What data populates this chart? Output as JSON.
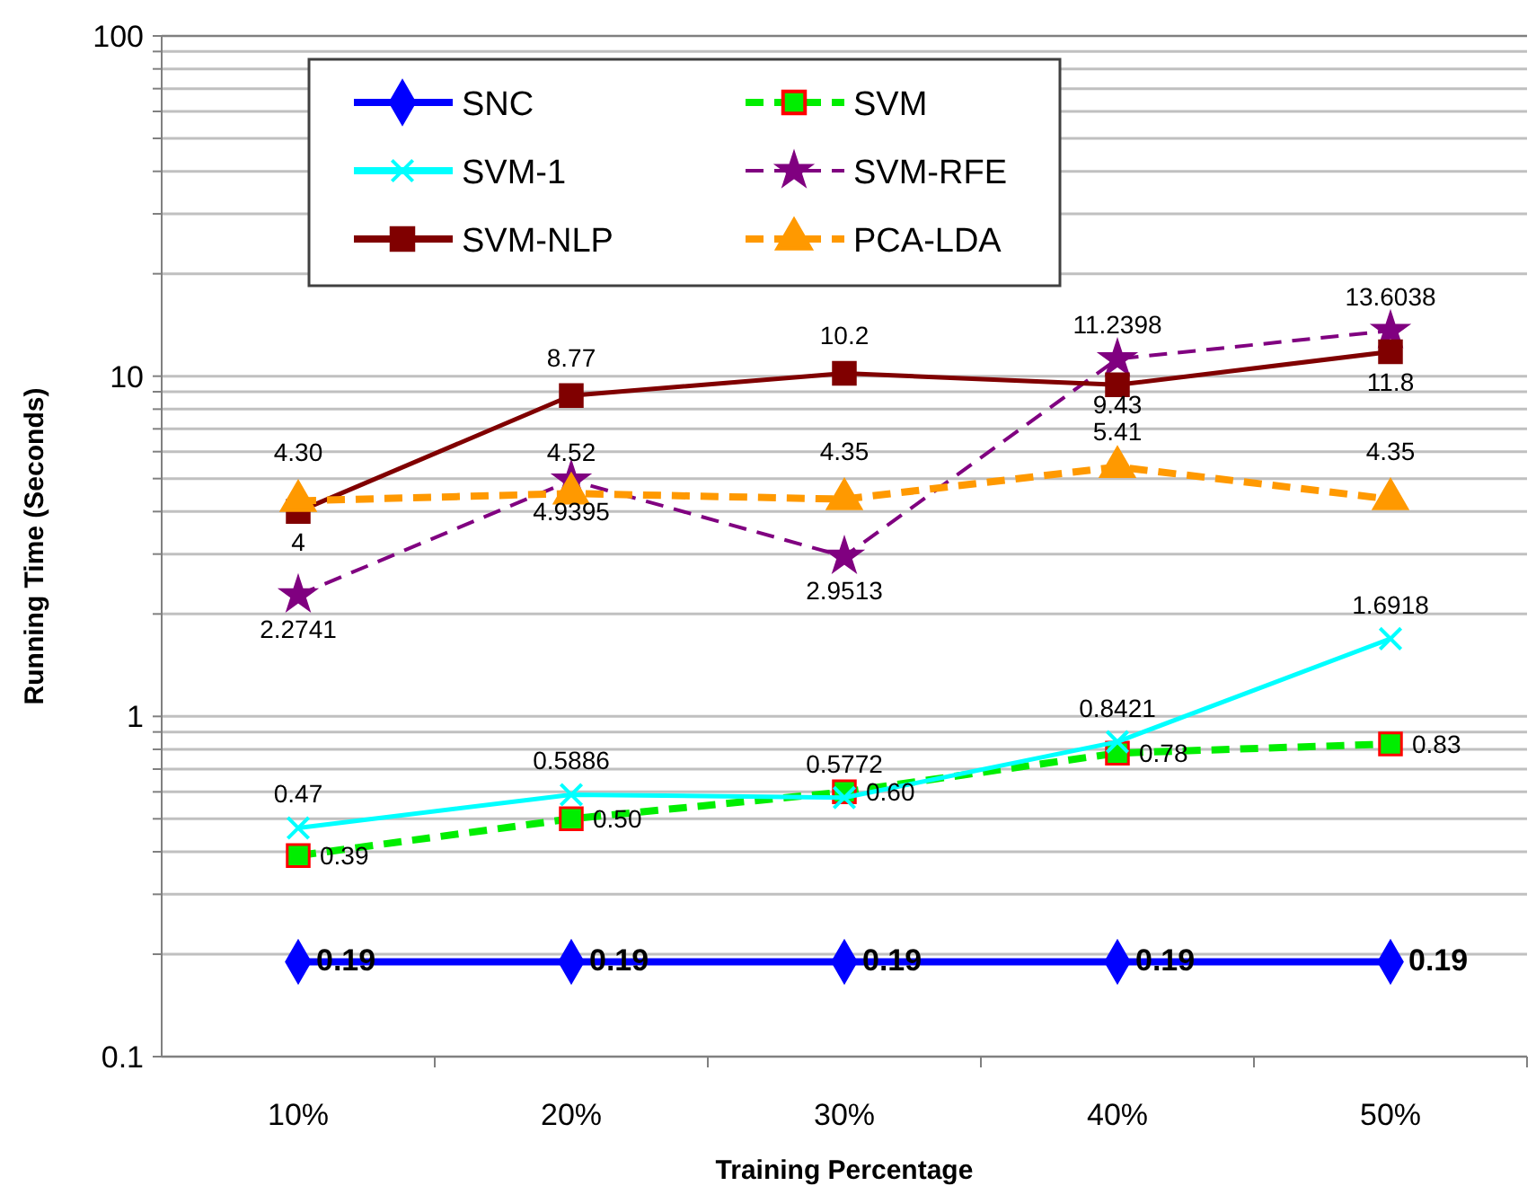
{
  "chart_data": {
    "type": "line",
    "xlabel": "Training Percentage",
    "ylabel": "Running Time (Seconds)",
    "categories": [
      "10%",
      "20%",
      "30%",
      "40%",
      "50%"
    ],
    "log": "y",
    "ylim": [
      0.1,
      100
    ],
    "yticks": [
      0.1,
      {
        "value": 0.2,
        "label": null
      },
      {
        "value": 0.3,
        "label": null
      },
      {
        "value": 0.4,
        "label": null
      },
      {
        "value": 0.5,
        "label": null
      },
      {
        "value": 0.6,
        "label": null
      },
      {
        "value": 0.7,
        "label": null
      },
      {
        "value": 0.8,
        "label": null
      },
      {
        "value": 0.9,
        "label": null
      },
      1,
      {
        "value": 2,
        "label": null
      },
      {
        "value": 3,
        "label": null
      },
      {
        "value": 4,
        "label": null
      },
      {
        "value": 5,
        "label": null
      },
      {
        "value": 6,
        "label": null
      },
      {
        "value": 7,
        "label": null
      },
      {
        "value": 8,
        "label": null
      },
      {
        "value": 9,
        "label": null
      },
      10,
      {
        "value": 20,
        "label": null
      },
      {
        "value": 30,
        "label": null
      },
      {
        "value": 40,
        "label": null
      },
      {
        "value": 50,
        "label": null
      },
      {
        "value": 60,
        "label": null
      },
      {
        "value": 70,
        "label": null
      },
      {
        "value": 80,
        "label": null
      },
      {
        "value": 90,
        "label": null
      },
      100
    ],
    "grid": "y",
    "legend": "top left",
    "series": [
      {
        "name": "SNC",
        "color": "#0000ff",
        "marker": "diamond",
        "line_style": "solid",
        "values": [
          0.19,
          0.19,
          0.19,
          0.19,
          0.19
        ],
        "value_labels": [
          "0.19",
          "0.19",
          "0.19",
          "0.19",
          "0.19"
        ]
      },
      {
        "name": "SVM",
        "color": "#00ee00",
        "marker": "square",
        "line_style": "dashed",
        "values": [
          0.39,
          0.5,
          0.6,
          0.78,
          0.83
        ],
        "value_labels": [
          "0.39",
          "0.50",
          "0.60",
          "0.78",
          "0.83"
        ]
      },
      {
        "name": "SVM-1",
        "color": "#00ffff",
        "marker": "cross",
        "line_style": "solid",
        "values": [
          0.47,
          0.5886,
          0.5772,
          0.8421,
          1.6918
        ],
        "value_labels": [
          "0.47",
          "0.5886",
          "0.5772",
          "0.8421",
          "1.6918"
        ]
      },
      {
        "name": "SVM-RFE",
        "color": "#800080",
        "marker": "star",
        "line_style": "dashed",
        "values": [
          2.2741,
          4.9395,
          2.9513,
          11.2398,
          13.6038
        ],
        "value_labels": [
          "2.2741",
          "4.9395",
          "2.9513",
          "11.2398",
          "13.6038"
        ]
      },
      {
        "name": "SVM-NLP",
        "color": "#800000",
        "marker": "square",
        "line_style": "solid",
        "values": [
          4,
          8.77,
          10.2,
          9.43,
          11.8
        ],
        "value_labels": [
          "4",
          "8.77",
          "10.2",
          "9.43",
          "11.8"
        ]
      },
      {
        "name": "PCA-LDA",
        "color": "#ff9900",
        "marker": "triangle",
        "line_style": "dashed",
        "values": [
          4.3,
          4.52,
          4.35,
          5.41,
          4.35
        ],
        "value_labels": [
          "4.30",
          "4.52",
          "4.35",
          "5.41",
          "4.35"
        ]
      }
    ]
  }
}
